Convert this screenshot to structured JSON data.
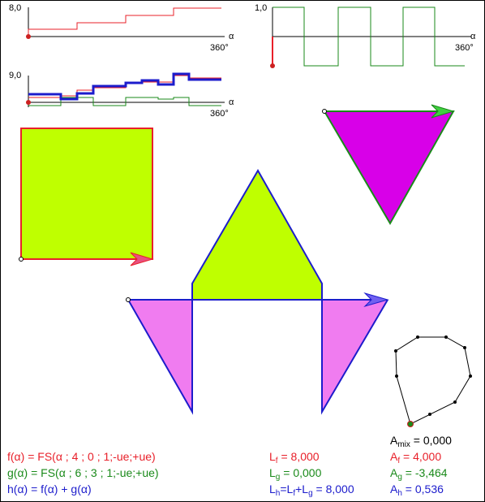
{
  "graphs": {
    "top_left": {
      "ymax_label": "8,0",
      "x_label": "α",
      "x_end_label": "360°"
    },
    "top_right": {
      "ymax_label": "1,0",
      "x_label": "α",
      "x_end_label": "360°"
    },
    "bottom_left": {
      "ymax_label": "9,0",
      "x_label": "α",
      "x_end_label": "360°"
    }
  },
  "formulas": {
    "f_def": "f(α) = FS(α ; 4 ; 0 ; 1;-ue;+ue)",
    "g_def": "g(α) = FS(α ; 6 ; 3 ; 1;-ue;+ue)",
    "h_def": "h(α) = f(α) + g(α)"
  },
  "lengths": {
    "lf": {
      "sym": "L",
      "sub": "f",
      "rest": " = 8,000"
    },
    "lg": {
      "sym": "L",
      "sub": "g",
      "rest": " = 0,000"
    },
    "lh_prefix": "L",
    "lh_sub1": "h",
    "lh_mid": "=L",
    "lh_sub2": "f",
    "lh_plus": "+L",
    "lh_sub3": "g",
    "lh_rest": " = 8,000"
  },
  "areas": {
    "amix": {
      "sym": "A",
      "sub": "mix",
      "rest": " = 0,000"
    },
    "af": {
      "sym": "A",
      "sub": "f",
      "rest": " = 4,000"
    },
    "ag": {
      "sym": "A",
      "sub": "g",
      "rest": " = -3,464"
    },
    "ah": {
      "sym": "A",
      "sub": "h",
      "rest": " = 0,536"
    }
  },
  "colors": {
    "f": "#e8202a",
    "g": "#1a8a1a",
    "h": "#1c1ccc",
    "square_fill": "#bfff00",
    "triangle_fill": "#d800e8",
    "h_neg_fill": "#f07cf0"
  }
}
